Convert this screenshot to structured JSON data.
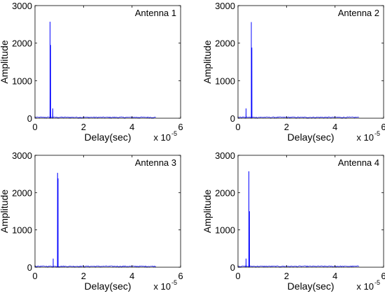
{
  "figure": {
    "background": "#ffffff",
    "line_color": "#0000ff",
    "axis_color": "#000000"
  },
  "chart_data": [
    {
      "type": "line",
      "title": "Antenna 1",
      "xlabel": "Delay(sec)",
      "ylabel": "Amplitude",
      "x_multiplier_label": "x 10",
      "x_multiplier_exponent": "-5",
      "xlim": [
        0,
        6
      ],
      "ylim": [
        0,
        3000
      ],
      "xticks": [
        "0",
        "2",
        "4",
        "6"
      ],
      "yticks": [
        "0",
        "1000",
        "2000",
        "3000"
      ],
      "grid": false,
      "noise_floor": 25,
      "signal_end": 5,
      "peaks": [
        {
          "x": 0.62,
          "y": 2570
        },
        {
          "x": 0.64,
          "y": 1950
        },
        {
          "x": 0.73,
          "y": 260
        }
      ]
    },
    {
      "type": "line",
      "title": "Antenna 2",
      "xlabel": "Delay(sec)",
      "ylabel": "Amplitude",
      "x_multiplier_label": "x 10",
      "x_multiplier_exponent": "-5",
      "xlim": [
        0,
        6
      ],
      "ylim": [
        0,
        3000
      ],
      "xticks": [
        "0",
        "2",
        "4",
        "6"
      ],
      "yticks": [
        "0",
        "1000",
        "2000",
        "3000"
      ],
      "grid": false,
      "noise_floor": 25,
      "signal_end": 5,
      "peaks": [
        {
          "x": 0.33,
          "y": 260
        },
        {
          "x": 0.55,
          "y": 2560
        },
        {
          "x": 0.57,
          "y": 1880
        }
      ]
    },
    {
      "type": "line",
      "title": "Antenna 3",
      "xlabel": "Delay(sec)",
      "ylabel": "Amplitude",
      "x_multiplier_label": "x 10",
      "x_multiplier_exponent": "-5",
      "xlim": [
        0,
        6
      ],
      "ylim": [
        0,
        3000
      ],
      "xticks": [
        "0",
        "2",
        "4",
        "6"
      ],
      "yticks": [
        "0",
        "1000",
        "2000",
        "3000"
      ],
      "grid": false,
      "noise_floor": 25,
      "signal_end": 5,
      "peaks": [
        {
          "x": 0.75,
          "y": 230
        },
        {
          "x": 0.93,
          "y": 2530
        },
        {
          "x": 0.95,
          "y": 2380
        }
      ]
    },
    {
      "type": "line",
      "title": "Antenna 4",
      "xlabel": "Delay(sec)",
      "ylabel": "Amplitude",
      "x_multiplier_label": "x 10",
      "x_multiplier_exponent": "-5",
      "xlim": [
        0,
        6
      ],
      "ylim": [
        0,
        3000
      ],
      "xticks": [
        "0",
        "2",
        "4",
        "6"
      ],
      "yticks": [
        "0",
        "1000",
        "2000",
        "3000"
      ],
      "grid": false,
      "noise_floor": 25,
      "signal_end": 5,
      "peaks": [
        {
          "x": 0.33,
          "y": 230
        },
        {
          "x": 0.45,
          "y": 2570
        },
        {
          "x": 0.47,
          "y": 1500
        }
      ]
    }
  ]
}
